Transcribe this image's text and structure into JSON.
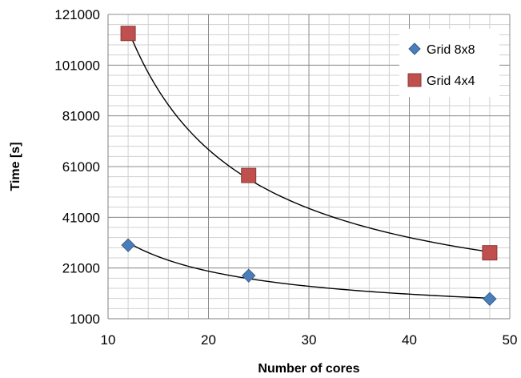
{
  "chart_data": {
    "type": "scatter",
    "title": "",
    "xlabel": "Number of cores",
    "ylabel": "Time [s]",
    "xlim": [
      10,
      50
    ],
    "ylim": [
      1000,
      121000
    ],
    "x_ticks": [
      "10",
      "20",
      "30",
      "40",
      "50"
    ],
    "y_ticks": [
      "1000",
      "21000",
      "41000",
      "61000",
      "81000",
      "101000",
      "121000"
    ],
    "grid": true,
    "legend_position": "top-right",
    "series": [
      {
        "name": "Grid 8x8",
        "marker": "diamond",
        "color": "#4a7ebb",
        "x": [
          12,
          24,
          48
        ],
        "y": [
          30000,
          18000,
          8800
        ],
        "trendline": "power"
      },
      {
        "name": "Grid 4x4",
        "marker": "square",
        "color": "#c0504d",
        "x": [
          12,
          24,
          48
        ],
        "y": [
          113500,
          57500,
          27000
        ],
        "trendline": "power"
      }
    ]
  }
}
